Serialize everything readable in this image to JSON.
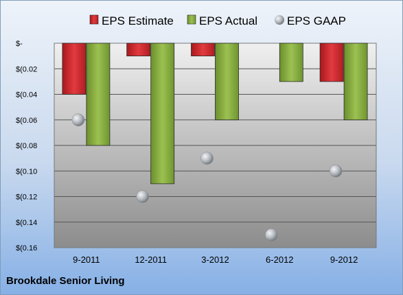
{
  "chart_data": {
    "type": "bar",
    "categories": [
      "9-2011",
      "12-2011",
      "3-2012",
      "6-2012",
      "9-2012"
    ],
    "series": [
      {
        "name": "EPS Estimate",
        "kind": "bar",
        "color": "#c0282c",
        "values": [
          -0.04,
          -0.01,
          -0.01,
          null,
          -0.03
        ]
      },
      {
        "name": "EPS Actual",
        "kind": "bar",
        "color": "#7fa33a",
        "values": [
          -0.08,
          -0.11,
          -0.06,
          -0.03,
          -0.06
        ]
      },
      {
        "name": "EPS GAAP",
        "kind": "marker",
        "color": "#a0a6ad",
        "values": [
          -0.06,
          -0.12,
          -0.09,
          -0.15,
          -0.1
        ]
      }
    ],
    "yticks": [
      {
        "value": 0,
        "label": "$-"
      },
      {
        "value": -0.02,
        "label": "$(0.02"
      },
      {
        "value": -0.04,
        "label": "$(0.04"
      },
      {
        "value": -0.06,
        "label": "$(0.06"
      },
      {
        "value": -0.08,
        "label": "$(0.08"
      },
      {
        "value": -0.1,
        "label": "$(0.10"
      },
      {
        "value": -0.12,
        "label": "$(0.12"
      },
      {
        "value": -0.14,
        "label": "$(0.14"
      },
      {
        "value": -0.16,
        "label": "$(0.16"
      }
    ],
    "ylim": [
      -0.16,
      0
    ],
    "grid": true,
    "legend": "top"
  },
  "footer": {
    "company": "Brookdale Senior Living"
  }
}
